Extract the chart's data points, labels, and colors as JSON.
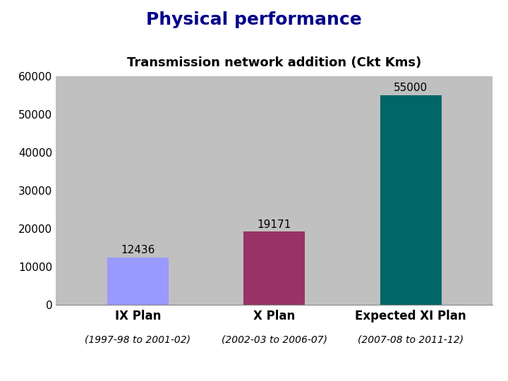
{
  "title": "Physical performance",
  "subtitle": "Transmission network addition (Ckt Kms)",
  "categories": [
    "IX Plan",
    "X Plan",
    "Expected XI Plan"
  ],
  "subtitles_below": [
    "(1997-98 to 2001-02)",
    "(2002-03 to 2006-07)",
    "(2007-08 to 2011-12)"
  ],
  "values": [
    12436,
    19171,
    55000
  ],
  "bar_colors": [
    "#9999ff",
    "#993366",
    "#006666"
  ],
  "plot_bg_color": "#c0c0c0",
  "fig_bg_color": "#ffffff",
  "ylim": [
    0,
    60000
  ],
  "yticks": [
    0,
    10000,
    20000,
    30000,
    40000,
    50000,
    60000
  ],
  "title_color": "#00008B",
  "subtitle_color": "#000000",
  "label_color": "#000000",
  "value_label_color": "#000000",
  "title_fontsize": 18,
  "subtitle_fontsize": 13,
  "tick_fontsize": 11,
  "value_fontsize": 11,
  "xlabel_fontsize": 12,
  "subxlabel_fontsize": 10
}
